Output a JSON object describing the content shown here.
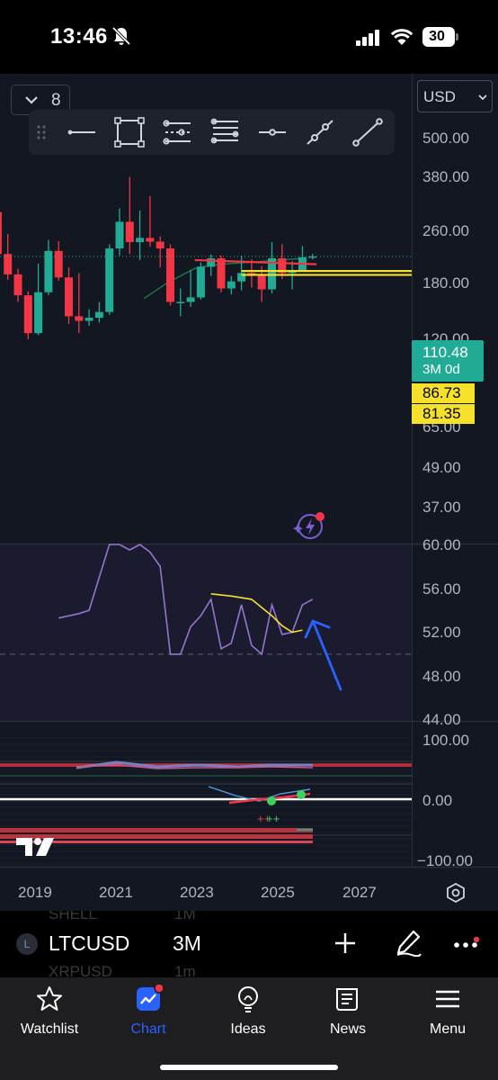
{
  "status_bar": {
    "time": "13:46",
    "battery": "30"
  },
  "toolbar": {
    "collapsed_count": "8",
    "currency": "USD"
  },
  "price_axis": {
    "labels": [
      "500.00",
      "380.00",
      "260.00",
      "180.00",
      "120.00",
      "65.00",
      "49.00",
      "37.00"
    ],
    "last_price": "110.48",
    "period": "3M 0d",
    "level_upper": "86.73",
    "level_lower": "81.35"
  },
  "rsi_axis": {
    "labels": [
      "60.00",
      "56.00",
      "52.00",
      "48.00",
      "44.00"
    ]
  },
  "osc_axis": {
    "labels": [
      "100.00",
      "0.00",
      "−100.00"
    ]
  },
  "time_axis": {
    "labels": [
      "2019",
      "2021",
      "2023",
      "2025",
      "2027"
    ]
  },
  "symbol_bar": {
    "symbol": "LTCUSD",
    "interval": "3M",
    "symbol_icon_letter": "L",
    "ghost_above_symbol": "SHELL",
    "ghost_above_interval": "1M",
    "ghost_below_symbol": "XRPUSD",
    "ghost_below_interval": "1m"
  },
  "tabs": [
    {
      "label": "Watchlist",
      "icon": "star-icon"
    },
    {
      "label": "Chart",
      "icon": "chart-icon",
      "active": true
    },
    {
      "label": "Ideas",
      "icon": "lightbulb-icon"
    },
    {
      "label": "News",
      "icon": "news-icon"
    },
    {
      "label": "Menu",
      "icon": "hamburger-icon"
    }
  ],
  "colors": {
    "bull": "#22ab94",
    "bear": "#f23645",
    "accent": "#2962ff",
    "level": "#f5e12a",
    "rsi": "#9575cd"
  },
  "chart_data": {
    "type": "candlestick",
    "symbol": "LTCUSD",
    "interval": "3M",
    "scale": "log",
    "ylim": [
      30,
      700
    ],
    "xlim": [
      "2018",
      "2027.8"
    ],
    "candles": [
      {
        "t": "2017.75",
        "o": 55.0,
        "h": 420.0,
        "l": 50.0,
        "c": 230.0
      },
      {
        "t": "2018.0",
        "o": 230.0,
        "h": 250.0,
        "l": 110.0,
        "c": 115.0
      },
      {
        "t": "2018.25",
        "o": 115.0,
        "h": 160.0,
        "l": 75.0,
        "c": 82.0
      },
      {
        "t": "2018.5",
        "o": 82.0,
        "h": 90.0,
        "l": 52.0,
        "c": 58.0
      },
      {
        "t": "2018.75",
        "o": 58.0,
        "h": 62.0,
        "l": 28.0,
        "c": 31.0
      },
      {
        "t": "2019.0",
        "o": 31.0,
        "h": 98.0,
        "l": 30.0,
        "c": 61.0
      },
      {
        "t": "2019.25",
        "o": 61.0,
        "h": 145.0,
        "l": 58.0,
        "c": 121.0
      },
      {
        "t": "2019.5",
        "o": 121.0,
        "h": 142.0,
        "l": 74.0,
        "c": 78.0
      },
      {
        "t": "2019.75",
        "o": 78.0,
        "h": 92.0,
        "l": 36.0,
        "c": 41.0
      },
      {
        "t": "2020.0",
        "o": 41.0,
        "h": 84.0,
        "l": 31.0,
        "c": 38.0
      },
      {
        "t": "2020.25",
        "o": 38.0,
        "h": 46.0,
        "l": 35.0,
        "c": 40.0
      },
      {
        "t": "2020.5",
        "o": 40.0,
        "h": 52.0,
        "l": 37.0,
        "c": 44.0
      },
      {
        "t": "2020.75",
        "o": 44.0,
        "h": 135.0,
        "l": 42.0,
        "c": 126.0
      },
      {
        "t": "2021.0",
        "o": 126.0,
        "h": 245.0,
        "l": 112.0,
        "c": 196.0
      },
      {
        "t": "2021.25",
        "o": 196.0,
        "h": 412.0,
        "l": 115.0,
        "c": 140.0
      },
      {
        "t": "2021.5",
        "o": 140.0,
        "h": 236.0,
        "l": 104.0,
        "c": 150.0
      },
      {
        "t": "2021.75",
        "o": 150.0,
        "h": 300.0,
        "l": 130.0,
        "c": 141.0
      },
      {
        "t": "2022.0",
        "o": 141.0,
        "h": 154.0,
        "l": 92.0,
        "c": 126.0
      },
      {
        "t": "2022.25",
        "o": 126.0,
        "h": 135.0,
        "l": 49.0,
        "c": 52.0
      },
      {
        "t": "2022.5",
        "o": 52.0,
        "h": 65.0,
        "l": 41.0,
        "c": 52.0
      },
      {
        "t": "2022.75",
        "o": 52.0,
        "h": 88.0,
        "l": 48.0,
        "c": 56.0
      },
      {
        "t": "2023.0",
        "o": 56.0,
        "h": 100.0,
        "l": 54.0,
        "c": 93.0
      },
      {
        "t": "2023.25",
        "o": 93.0,
        "h": 114.0,
        "l": 80.0,
        "c": 107.0
      },
      {
        "t": "2023.5",
        "o": 107.0,
        "h": 112.0,
        "l": 61.0,
        "c": 65.0
      },
      {
        "t": "2023.75",
        "o": 65.0,
        "h": 80.0,
        "l": 59.0,
        "c": 73.0
      },
      {
        "t": "2024.0",
        "o": 73.0,
        "h": 112.0,
        "l": 63.0,
        "c": 84.0
      },
      {
        "t": "2024.25",
        "o": 84.0,
        "h": 105.0,
        "l": 66.0,
        "c": 80.0
      },
      {
        "t": "2024.5",
        "o": 80.0,
        "h": 94.0,
        "l": 52.0,
        "c": 64.0
      },
      {
        "t": "2024.75",
        "o": 64.0,
        "h": 140.0,
        "l": 60.0,
        "c": 107.0
      },
      {
        "t": "2025.0",
        "o": 107.0,
        "h": 135.0,
        "l": 76.0,
        "c": 84.0
      },
      {
        "t": "2025.25",
        "o": 84.0,
        "h": 102.0,
        "l": 64.0,
        "c": 87.0
      },
      {
        "t": "2025.5",
        "o": 87.0,
        "h": 131.0,
        "l": 86.0,
        "c": 109.0
      },
      {
        "t": "2025.75",
        "o": 109.0,
        "h": 115.0,
        "l": 105.0,
        "c": 110.48
      }
    ],
    "levels": [
      86.73,
      81.35
    ],
    "last": 110.48,
    "rsi": {
      "ylim": [
        44,
        60
      ],
      "points": [
        [
          "2019.5",
          53.3
        ],
        [
          "2020.0",
          53.7
        ],
        [
          "2020.25",
          54.0
        ],
        [
          "2020.75",
          61.5
        ],
        [
          "2021.0",
          60.5
        ],
        [
          "2021.25",
          59.5
        ],
        [
          "2021.5",
          60.0
        ],
        [
          "2021.75",
          59.3
        ],
        [
          "2022.0",
          58.0
        ],
        [
          "2022.25",
          50.0
        ],
        [
          "2022.5",
          50.0
        ],
        [
          "2022.75",
          52.5
        ],
        [
          "2023.0",
          53.5
        ],
        [
          "2023.25",
          55.0
        ],
        [
          "2023.5",
          50.5
        ],
        [
          "2023.75",
          51.0
        ],
        [
          "2024.0",
          54.5
        ],
        [
          "2024.25",
          50.8
        ],
        [
          "2024.5",
          50.0
        ],
        [
          "2024.75",
          54.5
        ],
        [
          "2025.0",
          51.8
        ],
        [
          "2025.25",
          52.0
        ],
        [
          "2025.5",
          54.5
        ],
        [
          "2025.75",
          55.0
        ]
      ],
      "signal_points": [
        [
          "2023.25",
          55.5
        ],
        [
          "2023.75",
          55.3
        ],
        [
          "2024.25",
          55.0
        ],
        [
          "2024.75",
          53.5
        ],
        [
          "2025.0",
          52.6
        ],
        [
          "2025.25",
          52.0
        ],
        [
          "2025.5",
          52.2
        ]
      ],
      "midline": 50
    }
  }
}
